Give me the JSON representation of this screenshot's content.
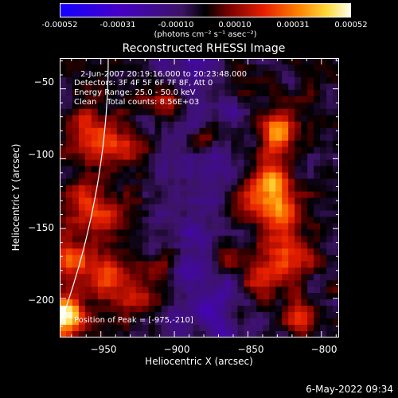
{
  "colorbar": {
    "ticks": [
      "-0.00052",
      "-0.00031",
      "-0.00010",
      "0.00010",
      "0.00031",
      "0.00052"
    ],
    "units": "(photons cm⁻² s⁻¹ asec⁻²)"
  },
  "chart_data": {
    "type": "heatmap",
    "title": "Reconstructed RHESSI Image",
    "xlabel": "Heliocentric X (arcsec)",
    "ylabel": "Heliocentric Y (arcsec)",
    "xlim": [
      -978,
      -788
    ],
    "ylim": [
      -228,
      -28
    ],
    "x_ticks": [
      -950,
      -900,
      -850,
      -800
    ],
    "y_ticks": [
      -50,
      -100,
      -150,
      -200
    ],
    "x_tick_labels": [
      "−950",
      "−900",
      "−850",
      "−800"
    ],
    "y_tick_labels": [
      "−50",
      "−100",
      "−150",
      "−200"
    ],
    "clim": [
      -0.00052,
      0.00052
    ],
    "colormap": "rhessi",
    "annotations": {
      "line1": "2-Jun-2007 20:19:16.000 to 20:23:48.000",
      "line2": "Detectors: 3F 4F 5F 6F 7F 8F, Att 0",
      "line3": "Energy Range: 25.0 - 50.0 keV",
      "line4": "Clean    Total counts: 8.56E+03",
      "peak": "Position of Peak = [-975,-210]"
    },
    "peak_position": [
      -975,
      -210
    ],
    "limb_color": "#ffffff"
  },
  "timestamp": "6-May-2022 09:34"
}
